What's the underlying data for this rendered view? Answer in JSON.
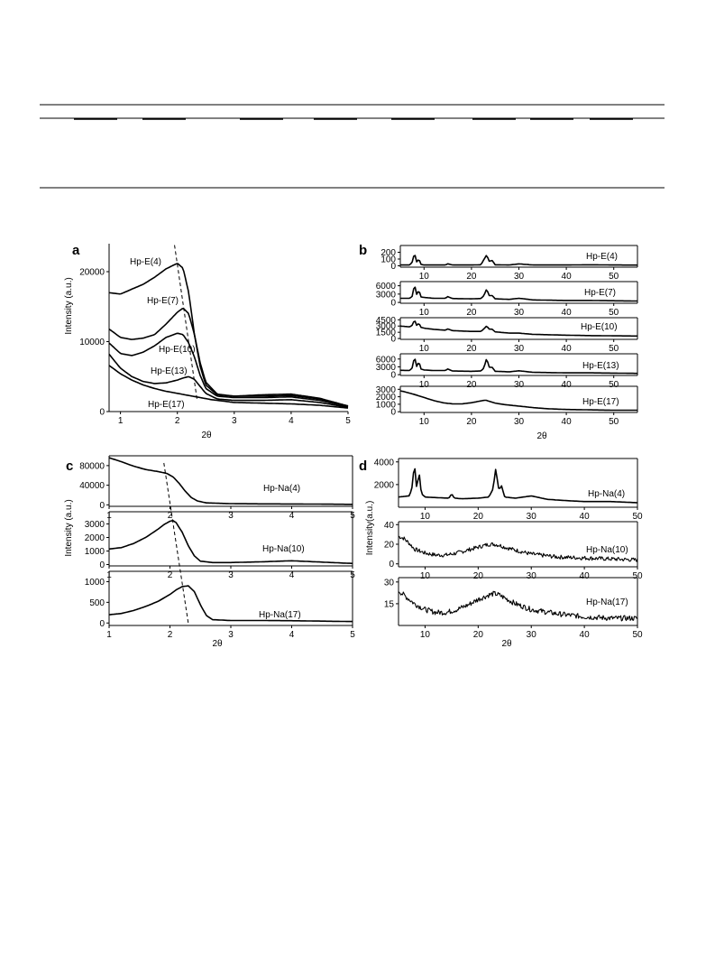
{
  "chart_data": [
    {
      "panel": "a",
      "type": "line",
      "xlabel": "2θ",
      "ylabel": "Intensity (a.u.)",
      "xlim": [
        0.8,
        5
      ],
      "ylim": [
        0,
        24000
      ],
      "xticks": [
        1,
        2,
        3,
        4,
        5
      ],
      "yticks": [
        0,
        10000,
        20000
      ],
      "series": [
        {
          "name": "Hp-E(4)",
          "x": [
            0.8,
            1.0,
            1.2,
            1.4,
            1.6,
            1.8,
            2.0,
            2.1,
            2.2,
            2.3,
            2.4,
            2.5,
            2.7,
            3.0,
            3.5,
            4.0,
            4.5,
            5.0
          ],
          "y": [
            17000,
            16800,
            17500,
            18200,
            19200,
            20400,
            21200,
            20500,
            17000,
            11000,
            6500,
            3800,
            2400,
            2200,
            2400,
            2500,
            1900,
            800
          ]
        },
        {
          "name": "Hp-E(7)",
          "x": [
            0.8,
            1.0,
            1.2,
            1.4,
            1.6,
            1.8,
            2.0,
            2.1,
            2.2,
            2.3,
            2.4,
            2.5,
            2.7,
            3.0,
            3.5,
            4.0,
            4.5,
            5.0
          ],
          "y": [
            11800,
            10600,
            10300,
            10500,
            11000,
            12500,
            14200,
            14800,
            14000,
            11000,
            7000,
            4200,
            2500,
            2200,
            2200,
            2300,
            1800,
            800
          ]
        },
        {
          "name": "Hp-E(10)",
          "x": [
            0.8,
            1.0,
            1.2,
            1.4,
            1.6,
            1.8,
            2.0,
            2.1,
            2.2,
            2.3,
            2.4,
            2.5,
            2.7,
            3.0,
            3.5,
            4.0,
            4.5,
            5.0
          ],
          "y": [
            9800,
            8300,
            8000,
            8500,
            9400,
            10600,
            11200,
            11000,
            9800,
            7800,
            5200,
            3300,
            2200,
            2000,
            2000,
            2100,
            1600,
            700
          ]
        },
        {
          "name": "Hp-E(13)",
          "x": [
            0.8,
            1.0,
            1.2,
            1.4,
            1.6,
            1.8,
            2.0,
            2.1,
            2.2,
            2.3,
            2.4,
            2.5,
            2.7,
            3.0,
            3.5,
            4.0,
            4.5,
            5.0
          ],
          "y": [
            8200,
            6200,
            5000,
            4300,
            4000,
            4100,
            4500,
            4800,
            5000,
            4600,
            3600,
            2600,
            1800,
            1600,
            1600,
            1700,
            1300,
            600
          ]
        },
        {
          "name": "Hp-E(17)",
          "x": [
            0.8,
            1.0,
            1.2,
            1.4,
            1.6,
            1.8,
            2.0,
            2.2,
            2.4,
            2.6,
            3.0,
            3.5,
            4.0,
            4.5,
            5.0
          ],
          "y": [
            6600,
            5400,
            4500,
            3800,
            3300,
            2900,
            2600,
            2300,
            2000,
            1700,
            1300,
            1200,
            1100,
            900,
            500
          ]
        }
      ]
    },
    {
      "panel": "b",
      "type": "line",
      "xlabel": "2θ",
      "xlim": [
        5,
        55
      ],
      "xticks": [
        10,
        20,
        30,
        40,
        50
      ],
      "series": [
        {
          "name": "Hp-E(4)",
          "ylim": [
            -20,
            300
          ],
          "yticks": [
            0,
            100,
            200
          ],
          "x": [
            5,
            7,
            7.5,
            8,
            8.5,
            8.9,
            9.3,
            10,
            12,
            14.5,
            15,
            16,
            20,
            22,
            22.6,
            23.2,
            23.8,
            24.3,
            25,
            28,
            30,
            33,
            40,
            45,
            50,
            55
          ],
          "y": [
            12,
            12,
            55,
            190,
            40,
            110,
            22,
            12,
            12,
            12,
            30,
            12,
            12,
            15,
            90,
            160,
            60,
            85,
            15,
            12,
            28,
            12,
            12,
            15,
            12,
            10
          ]
        },
        {
          "name": "Hp-E(7)",
          "ylim": [
            -300,
            7500
          ],
          "yticks": [
            0,
            3000,
            6000
          ],
          "x": [
            5,
            7,
            7.5,
            8,
            8.5,
            8.9,
            9.3,
            10,
            12,
            14.5,
            15,
            16,
            20,
            22,
            22.6,
            23.2,
            23.8,
            24.3,
            25,
            28,
            30,
            33,
            40,
            45,
            50,
            55
          ],
          "y": [
            1500,
            1500,
            2200,
            6500,
            2400,
            4700,
            2000,
            1800,
            1500,
            1500,
            2100,
            1400,
            1300,
            1400,
            2400,
            4800,
            2300,
            2600,
            1300,
            1100,
            1500,
            900,
            700,
            700,
            600,
            500
          ]
        },
        {
          "name": "Hp-E(10)",
          "ylim": [
            -200,
            5000
          ],
          "yticks": [
            0,
            1500,
            3000,
            4500
          ],
          "x": [
            5,
            7,
            7.5,
            8,
            8.5,
            8.9,
            9.3,
            10,
            12,
            14.5,
            15,
            16,
            20,
            22,
            22.6,
            23.2,
            23.8,
            24.3,
            25,
            28,
            30,
            33,
            40,
            45,
            50,
            55
          ],
          "y": [
            3000,
            2800,
            3200,
            4500,
            3000,
            3800,
            2700,
            2500,
            2200,
            2000,
            2300,
            1900,
            1700,
            1700,
            2300,
            3000,
            2200,
            2300,
            1600,
            1300,
            1300,
            1000,
            800,
            700,
            650,
            600
          ]
        },
        {
          "name": "Hp-E(13)",
          "ylim": [
            -300,
            8000
          ],
          "yticks": [
            0,
            3000,
            6000
          ],
          "x": [
            5,
            7,
            7.5,
            8,
            8.5,
            8.9,
            9.3,
            10,
            12,
            14.5,
            15,
            16,
            20,
            22,
            22.6,
            23.2,
            23.8,
            24.3,
            25,
            28,
            30,
            33,
            40,
            45,
            50,
            55
          ],
          "y": [
            1700,
            1600,
            2600,
            7000,
            2600,
            5400,
            2200,
            1800,
            1600,
            1600,
            2200,
            1400,
            1300,
            1400,
            2500,
            6200,
            2600,
            3000,
            1300,
            1100,
            1500,
            900,
            700,
            700,
            600,
            500
          ]
        },
        {
          "name": "Hp-E(17)",
          "ylim": [
            -100,
            3400
          ],
          "yticks": [
            0,
            1000,
            2000,
            3000
          ],
          "x": [
            5,
            6,
            8,
            10,
            12,
            14,
            16,
            18,
            20,
            22,
            23,
            24,
            25,
            27,
            30,
            33,
            36,
            40,
            45,
            50,
            55
          ],
          "y": [
            2800,
            2650,
            2300,
            1900,
            1500,
            1200,
            1050,
            1050,
            1200,
            1450,
            1550,
            1350,
            1150,
            950,
            750,
            550,
            400,
            300,
            250,
            200,
            200
          ]
        }
      ]
    },
    {
      "panel": "c",
      "type": "line",
      "xlabel": "2θ",
      "ylabel": "Intensity (a.u.)",
      "xlim": [
        1,
        5
      ],
      "xticks": [
        1,
        2,
        3,
        4,
        5
      ],
      "series": [
        {
          "name": "Hp-Na(4)",
          "ylim": [
            -3000,
            100000
          ],
          "yticks": [
            0,
            40000,
            80000
          ],
          "x": [
            1,
            1.2,
            1.4,
            1.6,
            1.8,
            1.95,
            2.05,
            2.15,
            2.25,
            2.35,
            2.45,
            2.6,
            3.0,
            3.5,
            4.0,
            4.5,
            5.0
          ],
          "y": [
            96000,
            88000,
            79000,
            72000,
            68000,
            64000,
            57000,
            44000,
            28000,
            15000,
            8000,
            4000,
            2500,
            2000,
            1800,
            1500,
            1000
          ]
        },
        {
          "name": "Hp-Na(10)",
          "ylim": [
            -100,
            3900
          ],
          "yticks": [
            0,
            1000,
            2000,
            3000
          ],
          "x": [
            1,
            1.2,
            1.4,
            1.6,
            1.8,
            1.9,
            2.0,
            2.05,
            2.1,
            2.2,
            2.3,
            2.4,
            2.5,
            2.7,
            3.0,
            3.5,
            4.0,
            4.5,
            5.0
          ],
          "y": [
            1150,
            1250,
            1550,
            2000,
            2600,
            2950,
            3200,
            3250,
            3100,
            2400,
            1400,
            650,
            250,
            150,
            150,
            200,
            280,
            180,
            80
          ]
        },
        {
          "name": "Hp-Na(17)",
          "ylim": [
            -60,
            1250
          ],
          "yticks": [
            0,
            500,
            1000
          ],
          "x": [
            1,
            1.2,
            1.4,
            1.6,
            1.8,
            2.0,
            2.1,
            2.2,
            2.3,
            2.4,
            2.5,
            2.6,
            2.7,
            3.0,
            3.5,
            4.0,
            4.5,
            5.0
          ],
          "y": [
            200,
            230,
            300,
            400,
            520,
            690,
            800,
            880,
            900,
            760,
            440,
            180,
            80,
            60,
            60,
            55,
            45,
            35
          ]
        }
      ]
    },
    {
      "panel": "d",
      "type": "line",
      "xlabel": "2θ",
      "ylabel": "Intensity(a.u.)",
      "xlim": [
        5,
        50
      ],
      "xticks": [
        10,
        20,
        30,
        40,
        50
      ],
      "series": [
        {
          "name": "Hp-Na(4)",
          "ylim": [
            0,
            4300
          ],
          "yticks": [
            2000,
            4000
          ],
          "x": [
            5,
            7,
            7.5,
            8,
            8.4,
            8.9,
            9.3,
            10,
            12,
            14.5,
            15,
            15.5,
            17,
            20,
            22,
            22.8,
            23.3,
            23.9,
            24.4,
            25,
            27,
            30,
            33,
            36,
            40,
            45,
            50
          ],
          "y": [
            900,
            1000,
            1600,
            3900,
            1700,
            3000,
            1200,
            900,
            850,
            800,
            1200,
            800,
            750,
            800,
            900,
            1600,
            3400,
            1500,
            1900,
            900,
            800,
            1000,
            700,
            600,
            500,
            500,
            400
          ]
        },
        {
          "name": "Hp-Na(10)",
          "ylim": [
            -3,
            43
          ],
          "yticks": [
            0,
            20,
            40
          ],
          "x": [
            5,
            6,
            7,
            8,
            10,
            12,
            14,
            16,
            18,
            20,
            22,
            23,
            24,
            25,
            27,
            30,
            35,
            40,
            45,
            50
          ],
          "y": [
            28,
            26,
            21,
            15,
            11,
            9,
            9,
            11,
            14,
            17,
            20,
            20,
            19,
            17,
            14,
            10,
            7,
            6,
            5,
            4
          ]
        },
        {
          "name": "Hp-Na(17)",
          "ylim": [
            0,
            33
          ],
          "yticks": [
            15,
            30
          ],
          "x": [
            5,
            6,
            7,
            8,
            10,
            12,
            14,
            16,
            18,
            20,
            22,
            23,
            24,
            25,
            27,
            30,
            35,
            40,
            45,
            50
          ],
          "y": [
            24,
            21,
            18,
            15,
            11,
            9,
            9,
            11,
            14,
            18,
            21,
            22,
            21,
            19,
            15,
            11,
            8,
            6,
            5,
            5
          ]
        }
      ]
    }
  ],
  "panels": {
    "a": {
      "label": "a",
      "xlabel": "2θ",
      "ylabel": "Intensity (a.u.)"
    },
    "b": {
      "label": "b",
      "xlabel": "2θ"
    },
    "c": {
      "label": "c",
      "xlabel": "2θ",
      "ylabel": "Intensity (a.u.)"
    },
    "d": {
      "label": "d",
      "xlabel": "2θ",
      "ylabel": "Intensity(a.u.)"
    }
  }
}
